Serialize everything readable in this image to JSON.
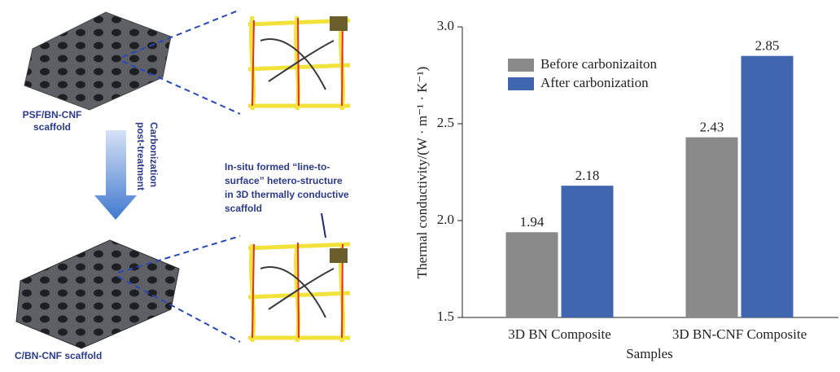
{
  "diagram": {
    "top_label": [
      "PSF/BN-CNF",
      "scaffold"
    ],
    "process_label": [
      "Carbonization",
      "post-treatment"
    ],
    "structure_label": [
      "In-situ formed “line-to-",
      "surface” hetero-structure",
      "in 3D thermally conductive",
      "scaffold"
    ],
    "bottom_label": "C/BN-CNF scaffold"
  },
  "chart_data": {
    "type": "bar",
    "y_label": "Thermal conductivity/(W · m⁻¹ · K⁻¹)",
    "x_label": "Samples",
    "categories": [
      "3D BN Composite",
      "3D BN-CNF Composite"
    ],
    "series": [
      {
        "name": "Before carbonizaiton",
        "color": "#8a8a8a",
        "values": [
          1.94,
          2.43
        ]
      },
      {
        "name": "After carbonization",
        "color": "#4066b0",
        "values": [
          2.18,
          2.85
        ]
      }
    ],
    "ylim": [
      1.5,
      3.0
    ],
    "yticks": [
      1.5,
      {
        "value": 2.0,
        "label": "2.0"
      },
      2.5,
      {
        "value": 3.0,
        "label": "3.0"
      }
    ],
    "legend": "upper-left"
  }
}
